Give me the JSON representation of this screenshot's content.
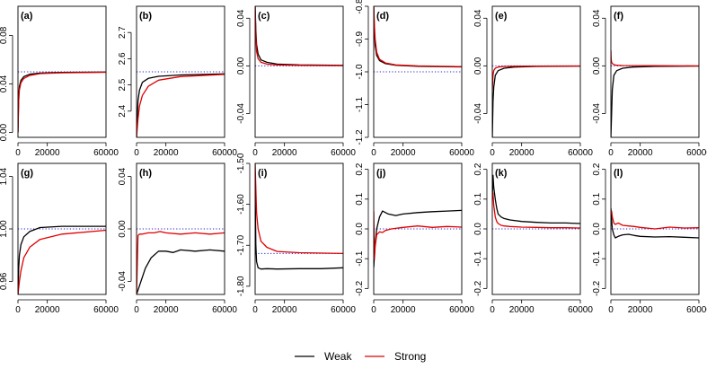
{
  "legend": [
    {
      "label": "Weak",
      "color": "#000000"
    },
    {
      "label": "Strong",
      "color": "#e00000"
    }
  ],
  "chart_data": [
    {
      "panel": "(a)",
      "type": "line",
      "xlim": [
        0,
        60000
      ],
      "ylim": [
        -0.004,
        0.104
      ],
      "xticks": [
        0,
        20000,
        60000
      ],
      "xtick_labels": [
        "0",
        "20000",
        "60000"
      ],
      "yticks": [
        0.0,
        0.04,
        0.08
      ],
      "ytick_labels": [
        "0.00",
        "0.04",
        "0.08"
      ],
      "reference": 0.05,
      "series": [
        {
          "name": "Weak",
          "x": [
            0,
            500,
            1000,
            2000,
            4000,
            8000,
            15000,
            30000,
            60000
          ],
          "y": [
            0.0,
            0.03,
            0.038,
            0.043,
            0.046,
            0.048,
            0.049,
            0.0495,
            0.0498
          ]
        },
        {
          "name": "Strong",
          "x": [
            0,
            500,
            1000,
            2000,
            4000,
            8000,
            15000,
            30000,
            60000
          ],
          "y": [
            0.0,
            0.026,
            0.035,
            0.041,
            0.0445,
            0.047,
            0.0485,
            0.0492,
            0.0496
          ]
        }
      ]
    },
    {
      "panel": "(b)",
      "type": "line",
      "xlim": [
        0,
        60000
      ],
      "ylim": [
        2.3,
        2.8
      ],
      "xticks": [
        0,
        20000,
        60000
      ],
      "xtick_labels": [
        "0",
        "20000",
        "60000"
      ],
      "yticks": [
        2.4,
        2.5,
        2.6,
        2.7
      ],
      "ytick_labels": [
        "2.4",
        "2.5",
        "2.6",
        "2.7"
      ],
      "reference": 2.55,
      "series": [
        {
          "name": "Weak",
          "x": [
            0,
            1000,
            2000,
            4000,
            8000,
            15000,
            30000,
            60000
          ],
          "y": [
            2.3,
            2.44,
            2.48,
            2.51,
            2.525,
            2.533,
            2.538,
            2.542
          ]
        },
        {
          "name": "Strong",
          "x": [
            0,
            1000,
            2000,
            4000,
            8000,
            15000,
            30000,
            60000
          ],
          "y": [
            2.3,
            2.37,
            2.42,
            2.46,
            2.495,
            2.518,
            2.532,
            2.54
          ]
        }
      ]
    },
    {
      "panel": "(c)",
      "type": "line",
      "xlim": [
        0,
        60000
      ],
      "ylim": [
        -0.06,
        0.05
      ],
      "xticks": [
        0,
        20000,
        60000
      ],
      "xtick_labels": [
        "0",
        "20000",
        "60000"
      ],
      "yticks": [
        -0.04,
        0.0,
        0.04
      ],
      "ytick_labels": [
        "-0.04",
        "0.00",
        "0.04"
      ],
      "reference": 0.0,
      "series": [
        {
          "name": "Weak",
          "x": [
            0,
            500,
            1000,
            2000,
            4000,
            8000,
            15000,
            30000,
            60000
          ],
          "y": [
            0.05,
            0.03,
            0.018,
            0.01,
            0.005,
            0.003,
            0.0015,
            0.0008,
            0.0004
          ]
        },
        {
          "name": "Strong",
          "x": [
            0,
            500,
            1000,
            2000,
            4000,
            8000,
            15000,
            30000,
            60000
          ],
          "y": [
            0.05,
            0.025,
            0.012,
            0.006,
            0.003,
            0.0015,
            0.0008,
            0.0004,
            0.0002
          ]
        }
      ]
    },
    {
      "panel": "(d)",
      "type": "line",
      "xlim": [
        0,
        60000
      ],
      "ylim": [
        -1.2,
        -0.8
      ],
      "xticks": [
        0,
        20000,
        60000
      ],
      "xtick_labels": [
        "0",
        "20000",
        "60000"
      ],
      "yticks": [
        -1.2,
        -1.1,
        -1.0,
        -0.9,
        -0.8
      ],
      "ytick_labels": [
        "-1.2",
        "-1.1",
        "-1.0",
        "-0.9",
        "-0.8"
      ],
      "reference": -1.0,
      "series": [
        {
          "name": "Weak",
          "x": [
            0,
            500,
            1000,
            2000,
            4000,
            8000,
            15000,
            30000,
            60000
          ],
          "y": [
            -0.8,
            -0.88,
            -0.92,
            -0.95,
            -0.966,
            -0.975,
            -0.98,
            -0.983,
            -0.985
          ]
        },
        {
          "name": "Strong",
          "x": [
            0,
            500,
            1000,
            2000,
            4000,
            8000,
            15000,
            30000,
            60000
          ],
          "y": [
            -0.8,
            -0.86,
            -0.9,
            -0.94,
            -0.962,
            -0.973,
            -0.979,
            -0.982,
            -0.984
          ]
        }
      ]
    },
    {
      "panel": "(e)",
      "type": "line",
      "xlim": [
        0,
        60000
      ],
      "ylim": [
        -0.06,
        0.05
      ],
      "xticks": [
        0,
        20000,
        60000
      ],
      "xtick_labels": [
        "0",
        "20000",
        "60000"
      ],
      "yticks": [
        -0.04,
        0.0,
        0.04
      ],
      "ytick_labels": [
        "-0.04",
        "0.00",
        "0.04"
      ],
      "reference": 0.0,
      "series": [
        {
          "name": "Weak",
          "x": [
            0,
            500,
            1000,
            2000,
            4000,
            8000,
            15000,
            30000,
            60000
          ],
          "y": [
            -0.06,
            -0.03,
            -0.018,
            -0.008,
            -0.004,
            -0.002,
            -0.001,
            -0.0005,
            -0.0002
          ]
        },
        {
          "name": "Strong",
          "x": [
            0,
            500,
            1000,
            2000,
            4000,
            8000,
            15000,
            30000,
            60000
          ],
          "y": [
            -0.02,
            -0.008,
            -0.004,
            -0.002,
            -0.001,
            -0.0005,
            -0.0003,
            -0.0002,
            -0.0001
          ]
        }
      ]
    },
    {
      "panel": "(f)",
      "type": "line",
      "xlim": [
        0,
        60000
      ],
      "ylim": [
        -0.06,
        0.05
      ],
      "xticks": [
        0,
        20000,
        60000
      ],
      "xtick_labels": [
        "0",
        "20000",
        "60000"
      ],
      "yticks": [
        -0.04,
        0.0,
        0.04
      ],
      "ytick_labels": [
        "-0.04",
        "0.00",
        "0.04"
      ],
      "reference": 0.0,
      "series": [
        {
          "name": "Weak",
          "x": [
            0,
            500,
            1000,
            2000,
            4000,
            8000,
            15000,
            30000,
            60000
          ],
          "y": [
            -0.06,
            -0.04,
            -0.02,
            -0.008,
            -0.004,
            -0.002,
            -0.001,
            -0.0005,
            -0.0002
          ]
        },
        {
          "name": "Strong",
          "x": [
            0,
            200,
            500,
            1000,
            2000,
            4000,
            8000,
            30000,
            60000
          ],
          "y": [
            0.013,
            0.006,
            0.003,
            0.002,
            0.001,
            0.0005,
            0.0003,
            0.0001,
            0.0
          ]
        }
      ]
    },
    {
      "panel": "(g)",
      "type": "line",
      "xlim": [
        0,
        60000
      ],
      "ylim": [
        0.95,
        1.05
      ],
      "xticks": [
        0,
        20000,
        60000
      ],
      "xtick_labels": [
        "0",
        "20000",
        "60000"
      ],
      "yticks": [
        0.96,
        1.0,
        1.04
      ],
      "ytick_labels": [
        "0.96",
        "1.00",
        "1.04"
      ],
      "reference": 1.0,
      "series": [
        {
          "name": "Weak",
          "x": [
            0,
            500,
            1000,
            2000,
            4000,
            8000,
            15000,
            30000,
            60000
          ],
          "y": [
            0.95,
            0.97,
            0.98,
            0.988,
            0.994,
            0.998,
            1.001,
            1.002,
            1.002
          ]
        },
        {
          "name": "Strong",
          "x": [
            0,
            1000,
            2000,
            4000,
            8000,
            15000,
            30000,
            60000
          ],
          "y": [
            0.95,
            0.96,
            0.968,
            0.978,
            0.986,
            0.992,
            0.996,
            0.999
          ]
        }
      ]
    },
    {
      "panel": "(h)",
      "type": "line",
      "xlim": [
        0,
        60000
      ],
      "ylim": [
        -0.05,
        0.05
      ],
      "xticks": [
        0,
        20000,
        60000
      ],
      "xtick_labels": [
        "0",
        "20000",
        "60000"
      ],
      "yticks": [
        -0.04,
        0.0,
        0.04
      ],
      "ytick_labels": [
        "-0.04",
        "0.00",
        "0.04"
      ],
      "reference": 0.0,
      "series": [
        {
          "name": "Weak",
          "x": [
            0,
            3000,
            6000,
            10000,
            15000,
            20000,
            25000,
            30000,
            40000,
            50000,
            60000
          ],
          "y": [
            -0.05,
            -0.04,
            -0.03,
            -0.022,
            -0.017,
            -0.017,
            -0.018,
            -0.016,
            -0.017,
            -0.016,
            -0.017
          ]
        },
        {
          "name": "Strong",
          "x": [
            0,
            1000,
            2000,
            4000,
            8000,
            12000,
            16000,
            20000,
            30000,
            40000,
            50000,
            60000
          ],
          "y": [
            -0.05,
            -0.005,
            -0.004,
            -0.004,
            -0.003,
            -0.003,
            -0.002,
            -0.003,
            -0.004,
            -0.003,
            -0.004,
            -0.003
          ]
        }
      ]
    },
    {
      "panel": "(i)",
      "type": "line",
      "xlim": [
        0,
        60000
      ],
      "ylim": [
        -1.82,
        -1.5
      ],
      "xticks": [
        0,
        20000,
        60000
      ],
      "xtick_labels": [
        "0",
        "20000",
        "60000"
      ],
      "yticks": [
        -1.8,
        -1.7,
        -1.6,
        -1.5
      ],
      "ytick_labels": [
        "-1.80",
        "-1.70",
        "-1.60",
        "-1.50"
      ],
      "reference": -1.72,
      "series": [
        {
          "name": "Weak",
          "x": [
            0,
            500,
            1000,
            2000,
            4000,
            8000,
            15000,
            30000,
            45000,
            60000
          ],
          "y": [
            -1.55,
            -1.7,
            -1.74,
            -1.755,
            -1.758,
            -1.757,
            -1.758,
            -1.757,
            -1.757,
            -1.755
          ]
        },
        {
          "name": "Strong",
          "x": [
            0,
            1000,
            2000,
            4000,
            8000,
            15000,
            30000,
            60000
          ],
          "y": [
            -1.5,
            -1.62,
            -1.66,
            -1.69,
            -1.705,
            -1.715,
            -1.718,
            -1.72
          ]
        }
      ]
    },
    {
      "panel": "(j)",
      "type": "line",
      "xlim": [
        0,
        60000
      ],
      "ylim": [
        -0.22,
        0.22
      ],
      "xticks": [
        0,
        20000,
        60000
      ],
      "xtick_labels": [
        "0",
        "20000",
        "60000"
      ],
      "yticks": [
        -0.2,
        -0.1,
        0.0,
        0.1,
        0.2
      ],
      "ytick_labels": [
        "-0.2",
        "-0.1",
        "0.0",
        "0.1",
        "0.2"
      ],
      "reference": 0.0,
      "series": [
        {
          "name": "Weak",
          "x": [
            0,
            1000,
            2000,
            4000,
            6000,
            8000,
            10000,
            15000,
            20000,
            30000,
            40000,
            50000,
            60000
          ],
          "y": [
            -0.13,
            -0.05,
            0.0,
            0.04,
            0.06,
            0.055,
            0.05,
            0.045,
            0.05,
            0.055,
            0.058,
            0.06,
            0.062
          ]
        },
        {
          "name": "Strong",
          "x": [
            0,
            500,
            1000,
            2000,
            4000,
            6000,
            8000,
            12000,
            20000,
            30000,
            40000,
            50000,
            60000
          ],
          "y": [
            0.06,
            -0.1,
            -0.06,
            -0.02,
            -0.01,
            -0.012,
            -0.005,
            0.0,
            0.005,
            0.01,
            0.005,
            0.008,
            0.006
          ]
        }
      ]
    },
    {
      "panel": "(k)",
      "type": "line",
      "xlim": [
        0,
        60000
      ],
      "ylim": [
        -0.22,
        0.22
      ],
      "xticks": [
        0,
        20000,
        60000
      ],
      "xtick_labels": [
        "0",
        "20000",
        "60000"
      ],
      "yticks": [
        -0.2,
        -0.1,
        0.0,
        0.1,
        0.2
      ],
      "ytick_labels": [
        "-0.2",
        "-0.1",
        "0.0",
        "0.1",
        "0.2"
      ],
      "reference": 0.0,
      "series": [
        {
          "name": "Weak",
          "x": [
            0,
            500,
            1000,
            2000,
            3000,
            4000,
            6000,
            8000,
            12000,
            20000,
            30000,
            40000,
            50000,
            60000
          ],
          "y": [
            0.1,
            0.18,
            0.14,
            0.1,
            0.07,
            0.05,
            0.04,
            0.035,
            0.03,
            0.025,
            0.022,
            0.02,
            0.02,
            0.018
          ]
        },
        {
          "name": "Strong",
          "x": [
            0,
            500,
            1000,
            2000,
            3000,
            4000,
            6000,
            8000,
            12000,
            20000,
            30000,
            40000,
            50000,
            60000
          ],
          "y": [
            0.1,
            0.12,
            0.08,
            0.04,
            0.025,
            0.018,
            0.012,
            0.01,
            0.008,
            0.006,
            0.005,
            0.004,
            0.004,
            0.003
          ]
        }
      ]
    },
    {
      "panel": "(l)",
      "type": "line",
      "xlim": [
        0,
        60000
      ],
      "ylim": [
        -0.22,
        0.22
      ],
      "xticks": [
        0,
        20000,
        60000
      ],
      "xtick_labels": [
        "0",
        "20000",
        "60000"
      ],
      "yticks": [
        -0.2,
        -0.1,
        0.0,
        0.1,
        0.2
      ],
      "ytick_labels": [
        "-0.2",
        "-0.1",
        "0.0",
        "0.1",
        "0.2"
      ],
      "reference": 0.0,
      "series": [
        {
          "name": "Weak",
          "x": [
            0,
            500,
            1000,
            2000,
            3000,
            5000,
            8000,
            12000,
            16000,
            20000,
            30000,
            40000,
            50000,
            60000
          ],
          "y": [
            0.07,
            0.03,
            0.0,
            -0.02,
            -0.03,
            -0.025,
            -0.02,
            -0.018,
            -0.022,
            -0.025,
            -0.027,
            -0.026,
            -0.028,
            -0.03
          ]
        },
        {
          "name": "Strong",
          "x": [
            0,
            500,
            1000,
            2000,
            3000,
            5000,
            8000,
            12000,
            16000,
            20000,
            30000,
            40000,
            50000,
            60000
          ],
          "y": [
            0.05,
            0.06,
            0.04,
            0.02,
            0.015,
            0.02,
            0.012,
            0.01,
            0.008,
            0.005,
            0.0,
            0.006,
            0.003,
            0.004
          ]
        }
      ]
    }
  ]
}
